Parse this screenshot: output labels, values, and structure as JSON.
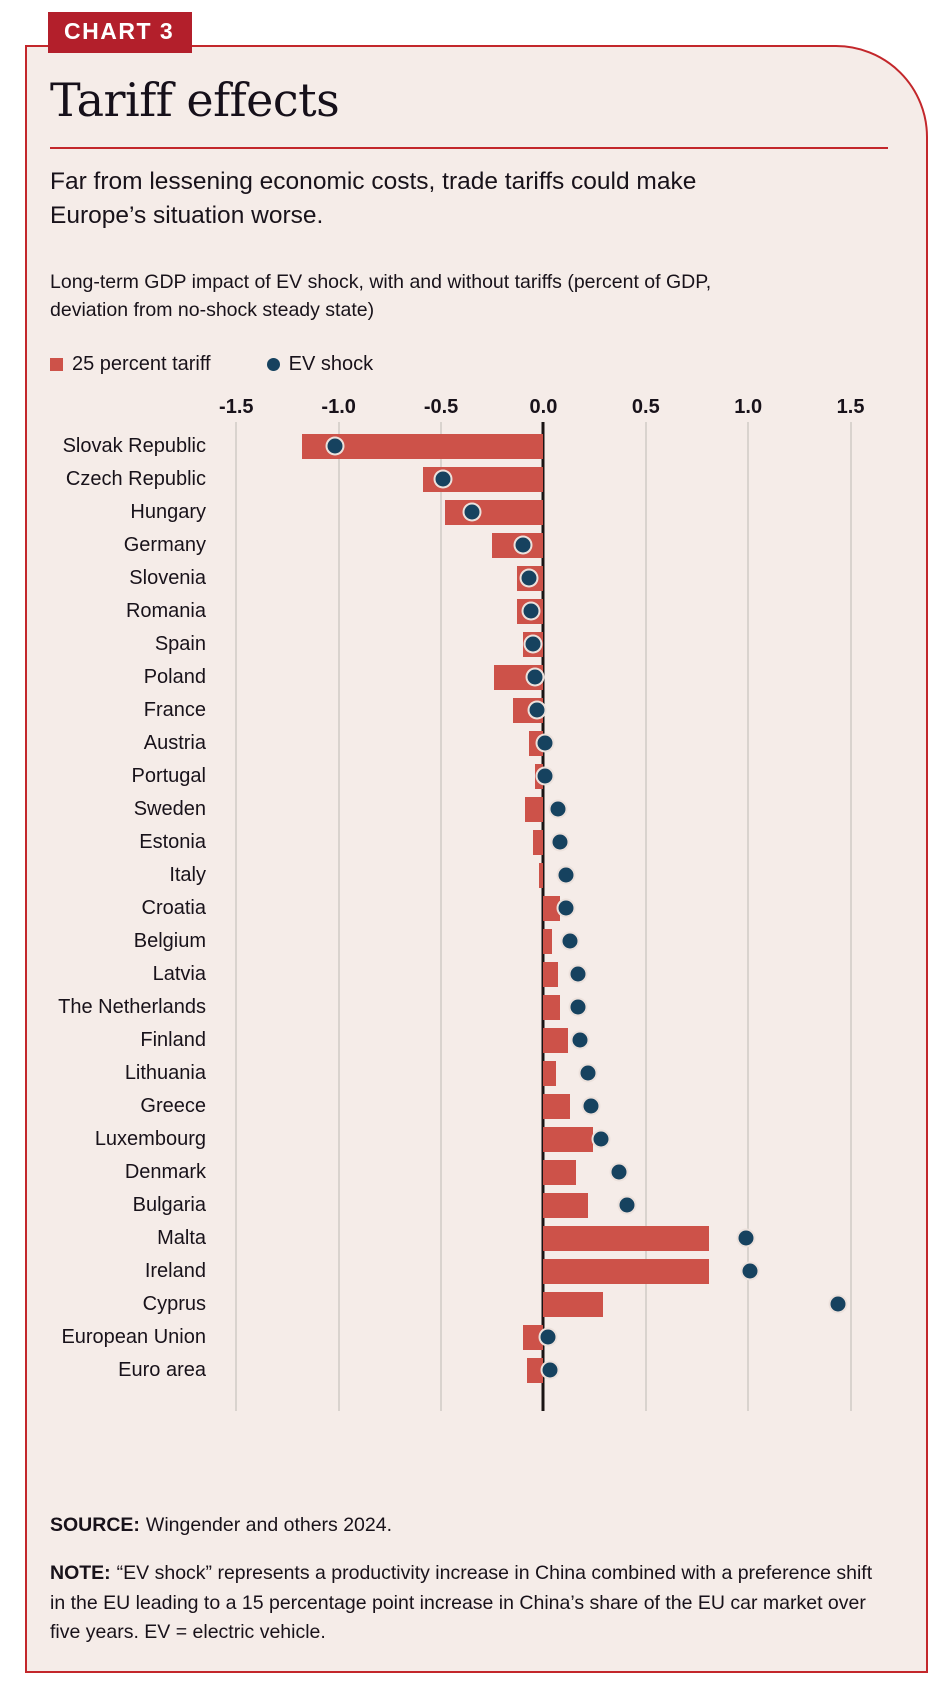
{
  "badge": "CHART 3",
  "title": "Tariff effects",
  "deck": "Far from lessening economic costs, trade tariffs could make\nEurope’s situation worse.",
  "chart_label": "Long-term GDP impact of EV shock, with and without tariffs (percent of GDP,\ndeviation from no-shock steady state)",
  "legend": [
    {
      "label": "25 percent tariff",
      "marker": "square-icon",
      "color": "#cd5249"
    },
    {
      "label": "EV shock",
      "marker": "dot-icon",
      "color": "#16425f"
    }
  ],
  "footer": {
    "source_label": "SOURCE:",
    "source_text": "Wingender and others 2024.",
    "note_label": "NOTE:",
    "note_text": "“EV shock” represents a productivity increase in China combined with a preference shift\nin the EU leading to a 15 percentage point increase in China’s share of the EU car market over\nfive years. EV = electric vehicle."
  },
  "colors": {
    "accent_red": "#c3272b",
    "badge_red": "#b31f2b",
    "bar_red": "#cd5249",
    "dot_navy": "#16425f",
    "card_bg": "#f5ece8",
    "grid": "#d9d3ce",
    "zero_line": "#1a1414",
    "text": "#18121a"
  },
  "chart_data": {
    "type": "bar",
    "orientation": "horizontal",
    "title": "Long-term GDP impact of EV shock, with and without tariffs (percent of GDP, deviation from no-shock steady state)",
    "xlabel": "Percent of GDP, deviation from no-shock steady state",
    "ylabel": "",
    "grid": "vertical",
    "legend_position": "top-left",
    "xlim": [
      -1.5,
      1.5
    ],
    "xlim_render": [
      -1.56,
      1.59
    ],
    "xticks": [
      -1.5,
      -1.0,
      -0.5,
      0.0,
      0.5,
      1.0,
      1.5
    ],
    "xtick_labels": [
      "-1.5",
      "-1.0",
      "-0.5",
      "0.0",
      "0.5",
      "1.0",
      "1.5"
    ],
    "categories": [
      "Slovak Republic",
      "Czech Republic",
      "Hungary",
      "Germany",
      "Slovenia",
      "Romania",
      "Spain",
      "Poland",
      "France",
      "Austria",
      "Portugal",
      "Sweden",
      "Estonia",
      "Italy",
      "Croatia",
      "Belgium",
      "Latvia",
      "The Netherlands",
      "Finland",
      "Lithuania",
      "Greece",
      "Luxembourg",
      "Denmark",
      "Bulgaria",
      "Malta",
      "Ireland",
      "Cyprus",
      "European Union",
      "Euro area"
    ],
    "series": [
      {
        "name": "25 percent tariff",
        "mark": "bar",
        "color": "#cd5249",
        "values": [
          -1.18,
          -0.59,
          -0.48,
          -0.25,
          -0.13,
          -0.13,
          -0.1,
          -0.24,
          -0.15,
          -0.07,
          -0.04,
          -0.09,
          -0.05,
          -0.02,
          0.08,
          0.04,
          0.07,
          0.08,
          0.12,
          0.06,
          0.13,
          0.24,
          0.16,
          0.22,
          0.81,
          0.81,
          0.29,
          -0.1,
          -0.08
        ]
      },
      {
        "name": "EV shock",
        "mark": "dot",
        "color": "#16425f",
        "values": [
          -1.02,
          -0.49,
          -0.35,
          -0.1,
          -0.07,
          -0.06,
          -0.05,
          -0.04,
          -0.03,
          0.01,
          0.01,
          0.07,
          0.08,
          0.11,
          0.11,
          0.13,
          0.17,
          0.17,
          0.18,
          0.22,
          0.23,
          0.28,
          0.37,
          0.41,
          0.99,
          1.01,
          1.44,
          0.02,
          0.03
        ]
      }
    ]
  }
}
